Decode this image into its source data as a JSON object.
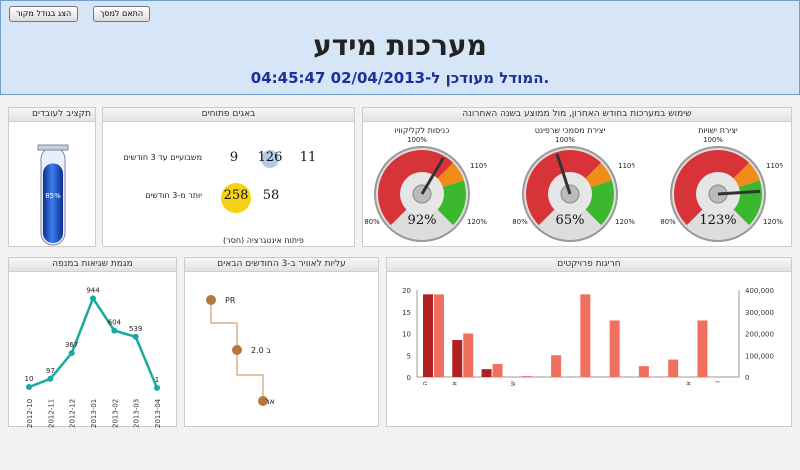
{
  "header": {
    "btn_fit": "התאם למסך",
    "btn_original": "הצג בגודל מקור",
    "title": "מערכות מידע",
    "subtitle": "המודל מעודכן ל-02/04/2013 04:45:47."
  },
  "panels": {
    "usage": "שימוש במערכות בחודש האחרון, מול ממוצע בשנה האחרונה",
    "bugs": "באגים פתוחים",
    "budget": "תקציב לעובדים",
    "errors": "מגמת שגיאות במנפה",
    "golive": "עליות לאוויר ב-3 החודשים הבאים",
    "overruns": "חריגות פרויקטים"
  },
  "gauges": [
    {
      "title": "יצירת ישויות",
      "value": 123,
      "label": "123%",
      "min_label": "80%",
      "mid_label": "110%",
      "max_label": "120%",
      "top_label": "100%"
    },
    {
      "title": "יצירת מסמכי שרפינט",
      "value": 65,
      "label": "65%",
      "min_label": "80%",
      "mid_label": "110%",
      "max_label": "120%",
      "top_label": "100%"
    },
    {
      "title": "כניסות לקליקוויו",
      "value": 92,
      "label": "92%",
      "min_label": "80%",
      "mid_label": "110%",
      "max_label": "120%",
      "top_label": "100%"
    }
  ],
  "bugs": {
    "row1_label": "משבועיים עד 3 חודשים",
    "row1_values": [
      "11",
      "126",
      "9"
    ],
    "row2_label": "יותר מ-3 חודשים",
    "row2_values": [
      "58",
      "258"
    ],
    "footer": "פיתוח אינטגרציה (חסר)"
  },
  "budget": {
    "label": "85%",
    "value": 85
  },
  "colors": {
    "gauge_red": "#d9333a",
    "gauge_orange": "#f08c1a",
    "gauge_green": "#3cb82e",
    "line": "#1aa99e",
    "bar_dark": "#b02020",
    "bar_light": "#f07060",
    "tube": "#1a4fc0"
  },
  "golive": {
    "items": [
      "PR",
      "2.0 ב",
      "אר"
    ]
  },
  "chart_data": [
    {
      "type": "line",
      "x": [
        "2012-10",
        "2012-11",
        "2012-12",
        "2013-01",
        "2013-02",
        "2013-03",
        "2013-04"
      ],
      "values": [
        10,
        97,
        367,
        944,
        604,
        539,
        1
      ],
      "labels": [
        "10",
        "97",
        "367",
        "944",
        "604",
        "539",
        "1"
      ]
    },
    {
      "type": "bar",
      "categories": [
        "ה",
        "א",
        "",
        "ש",
        "",
        "",
        "",
        "",
        "",
        "א",
        "ו"
      ],
      "series": [
        {
          "values": [
            19,
            8.5,
            1.8,
            0,
            0,
            0,
            0,
            0,
            0,
            0,
            0
          ]
        },
        {
          "values": [
            19,
            10,
            3,
            0.2,
            5,
            19,
            13,
            2.5,
            4,
            13,
            0
          ]
        }
      ],
      "yticks_left": [
        "0",
        "5",
        "10",
        "15",
        "20"
      ],
      "yticks_right": [
        "0",
        "100,000",
        "200,000",
        "300,000",
        "400,000"
      ],
      "ylim": [
        0,
        20
      ]
    }
  ]
}
